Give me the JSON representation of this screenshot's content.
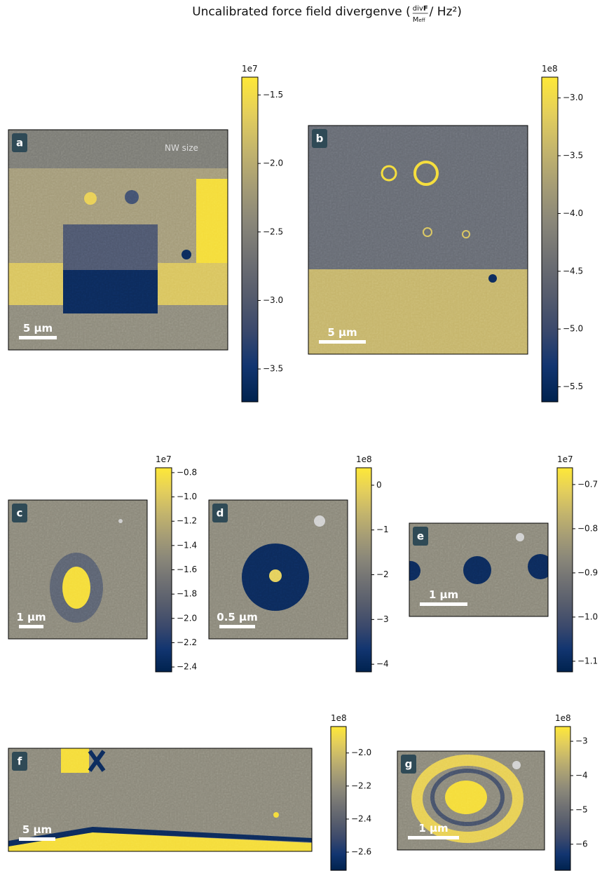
{
  "title": {
    "text": "Uncalibrated force field divergenve (",
    "numerator": "div",
    "numerator_bold": "F",
    "denominator": "M",
    "denominator_sub": "eff",
    "suffix": " / Hz²)"
  },
  "chart_data": [
    {
      "type": "heatmap",
      "label": "a",
      "scale_bar": "5 µm",
      "annotation": "NW size",
      "colormap": "cividis",
      "offset_label": "1e7",
      "clim": [
        -3.74,
        -1.37
      ],
      "cticks": [
        {
          "value": -1.5,
          "label": "−1.5"
        },
        {
          "value": -2.0,
          "label": "−2.0"
        },
        {
          "value": -2.5,
          "label": "−2.5"
        },
        {
          "value": -3.0,
          "label": "−3.0"
        },
        {
          "value": -3.5,
          "label": "−3.5"
        }
      ]
    },
    {
      "type": "heatmap",
      "label": "b",
      "scale_bar": "5 µm",
      "colormap": "cividis",
      "offset_label": "1e8",
      "clim": [
        -5.63,
        -2.82
      ],
      "cticks": [
        {
          "value": -3.0,
          "label": "−3.0"
        },
        {
          "value": -3.5,
          "label": "−3.5"
        },
        {
          "value": -4.0,
          "label": "−4.0"
        },
        {
          "value": -4.5,
          "label": "−4.5"
        },
        {
          "value": -5.0,
          "label": "−5.0"
        },
        {
          "value": -5.5,
          "label": "−5.5"
        }
      ]
    },
    {
      "type": "heatmap",
      "label": "c",
      "scale_bar": "1 µm",
      "colormap": "cividis",
      "offset_label": "1e7",
      "clim": [
        -2.44,
        -0.76
      ],
      "cticks": [
        {
          "value": -0.8,
          "label": "−0.8"
        },
        {
          "value": -1.0,
          "label": "−1.0"
        },
        {
          "value": -1.2,
          "label": "−1.2"
        },
        {
          "value": -1.4,
          "label": "−1.4"
        },
        {
          "value": -1.6,
          "label": "−1.6"
        },
        {
          "value": -1.8,
          "label": "−1.8"
        },
        {
          "value": -2.0,
          "label": "−2.0"
        },
        {
          "value": -2.2,
          "label": "−2.2"
        },
        {
          "value": -2.4,
          "label": "−2.4"
        }
      ]
    },
    {
      "type": "heatmap",
      "label": "d",
      "scale_bar": "0.5 µm",
      "colormap": "cividis",
      "offset_label": "1e8",
      "clim": [
        -4.17,
        0.39
      ],
      "cticks": [
        0,
        {
          "value": -1,
          "label": "−1"
        },
        {
          "value": -2,
          "label": "−2"
        },
        {
          "value": -3,
          "label": "−3"
        },
        {
          "value": -4,
          "label": "−4"
        }
      ]
    },
    {
      "type": "heatmap",
      "label": "e",
      "scale_bar": "1 µm",
      "colormap": "cividis",
      "offset_label": "1e7",
      "clim": [
        -1.124,
        -0.662
      ],
      "cticks": [
        {
          "value": -0.7,
          "label": "−0.7"
        },
        {
          "value": -0.8,
          "label": "−0.8"
        },
        {
          "value": -0.9,
          "label": "−0.9"
        },
        {
          "value": -1.0,
          "label": "−1.0"
        },
        {
          "value": -1.1,
          "label": "−1.1"
        }
      ]
    },
    {
      "type": "heatmap",
      "label": "f",
      "scale_bar": "5 µm",
      "colormap": "cividis",
      "offset_label": "1e8",
      "clim": [
        -2.71,
        -1.84
      ],
      "cticks": [
        {
          "value": -2.0,
          "label": "−2.0"
        },
        {
          "value": -2.2,
          "label": "−2.2"
        },
        {
          "value": -2.4,
          "label": "−2.4"
        },
        {
          "value": -2.6,
          "label": "−2.6"
        }
      ]
    },
    {
      "type": "heatmap",
      "label": "g",
      "scale_bar": "1 µm",
      "colormap": "cividis",
      "offset_label": "1e8",
      "clim": [
        -6.76,
        -2.57
      ],
      "cticks": [
        {
          "value": -3,
          "label": "−3"
        },
        {
          "value": -4,
          "label": "−4"
        },
        {
          "value": -5,
          "label": "−5"
        },
        {
          "value": -6,
          "label": "−6"
        }
      ]
    }
  ]
}
